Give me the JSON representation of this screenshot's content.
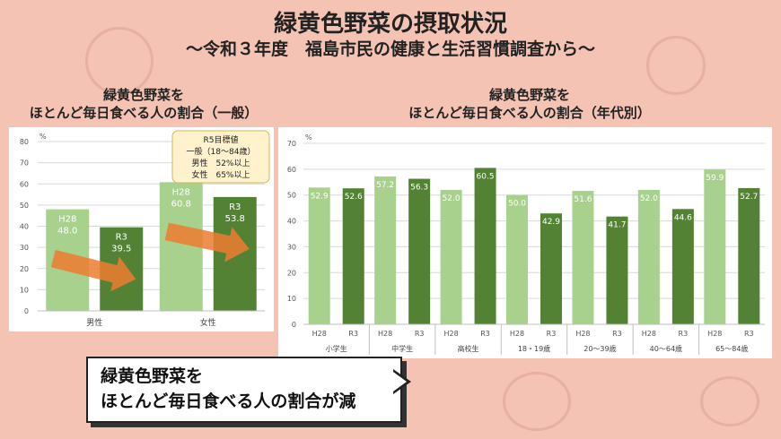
{
  "header": {
    "title": "緑黄色野菜の摂取状況",
    "subtitle": "～令和３年度　福島市民の健康と生活習慣調査から～"
  },
  "left_chart_title": [
    "緑黄色野菜を",
    "ほとんど毎日食べる人の割合（一般）"
  ],
  "right_chart_title": [
    "緑黄色野菜を",
    "ほとんど毎日食べる人の割合（年代別）"
  ],
  "target_box": {
    "title": "R5目標値",
    "line1": "一般（18～84歳）",
    "line2": "男性　52%以上",
    "line3": "女性　65%以上"
  },
  "callout": {
    "line1": "緑黄色野菜を",
    "line2": "ほとんど毎日食べる人の割合が減"
  },
  "colors": {
    "h28": "#a9d18e",
    "r3": "#548235",
    "arrow": "#ed7d31",
    "background": "#f4c3b4"
  },
  "chart_data": [
    {
      "type": "bar",
      "unit": "%",
      "ylim": [
        0,
        80
      ],
      "yticks": [
        0,
        10,
        20,
        30,
        40,
        50,
        60,
        70,
        80
      ],
      "grid": true,
      "categories": [
        "男性",
        "女性"
      ],
      "series": [
        {
          "name": "H28",
          "values": [
            48.0,
            60.8
          ]
        },
        {
          "name": "R3",
          "values": [
            39.5,
            53.8
          ]
        }
      ],
      "value_labels": [
        [
          "48.0",
          "60.8"
        ],
        [
          "39.5",
          "53.8"
        ]
      ]
    },
    {
      "type": "bar",
      "unit": "%",
      "ylim": [
        0,
        70
      ],
      "yticks": [
        0,
        10,
        20,
        30,
        40,
        50,
        60,
        70
      ],
      "grid": true,
      "categories": [
        "小学生",
        "中学生",
        "高校生",
        "18・19歳",
        "20～39歳",
        "40～64歳",
        "65～84歳"
      ],
      "series": [
        {
          "name": "H28",
          "values": [
            52.9,
            57.2,
            52.0,
            50.0,
            51.6,
            52.0,
            59.9
          ]
        },
        {
          "name": "R3",
          "values": [
            52.6,
            56.3,
            60.5,
            42.9,
            41.7,
            44.6,
            52.7
          ]
        }
      ],
      "value_labels": [
        [
          "52.9",
          "57.2",
          "52.0",
          "50.0",
          "51.6",
          "52.0",
          "59.9"
        ],
        [
          "52.6",
          "56.3",
          "60.5",
          "42.9",
          "41.7",
          "44.6",
          "52.7"
        ]
      ]
    }
  ]
}
